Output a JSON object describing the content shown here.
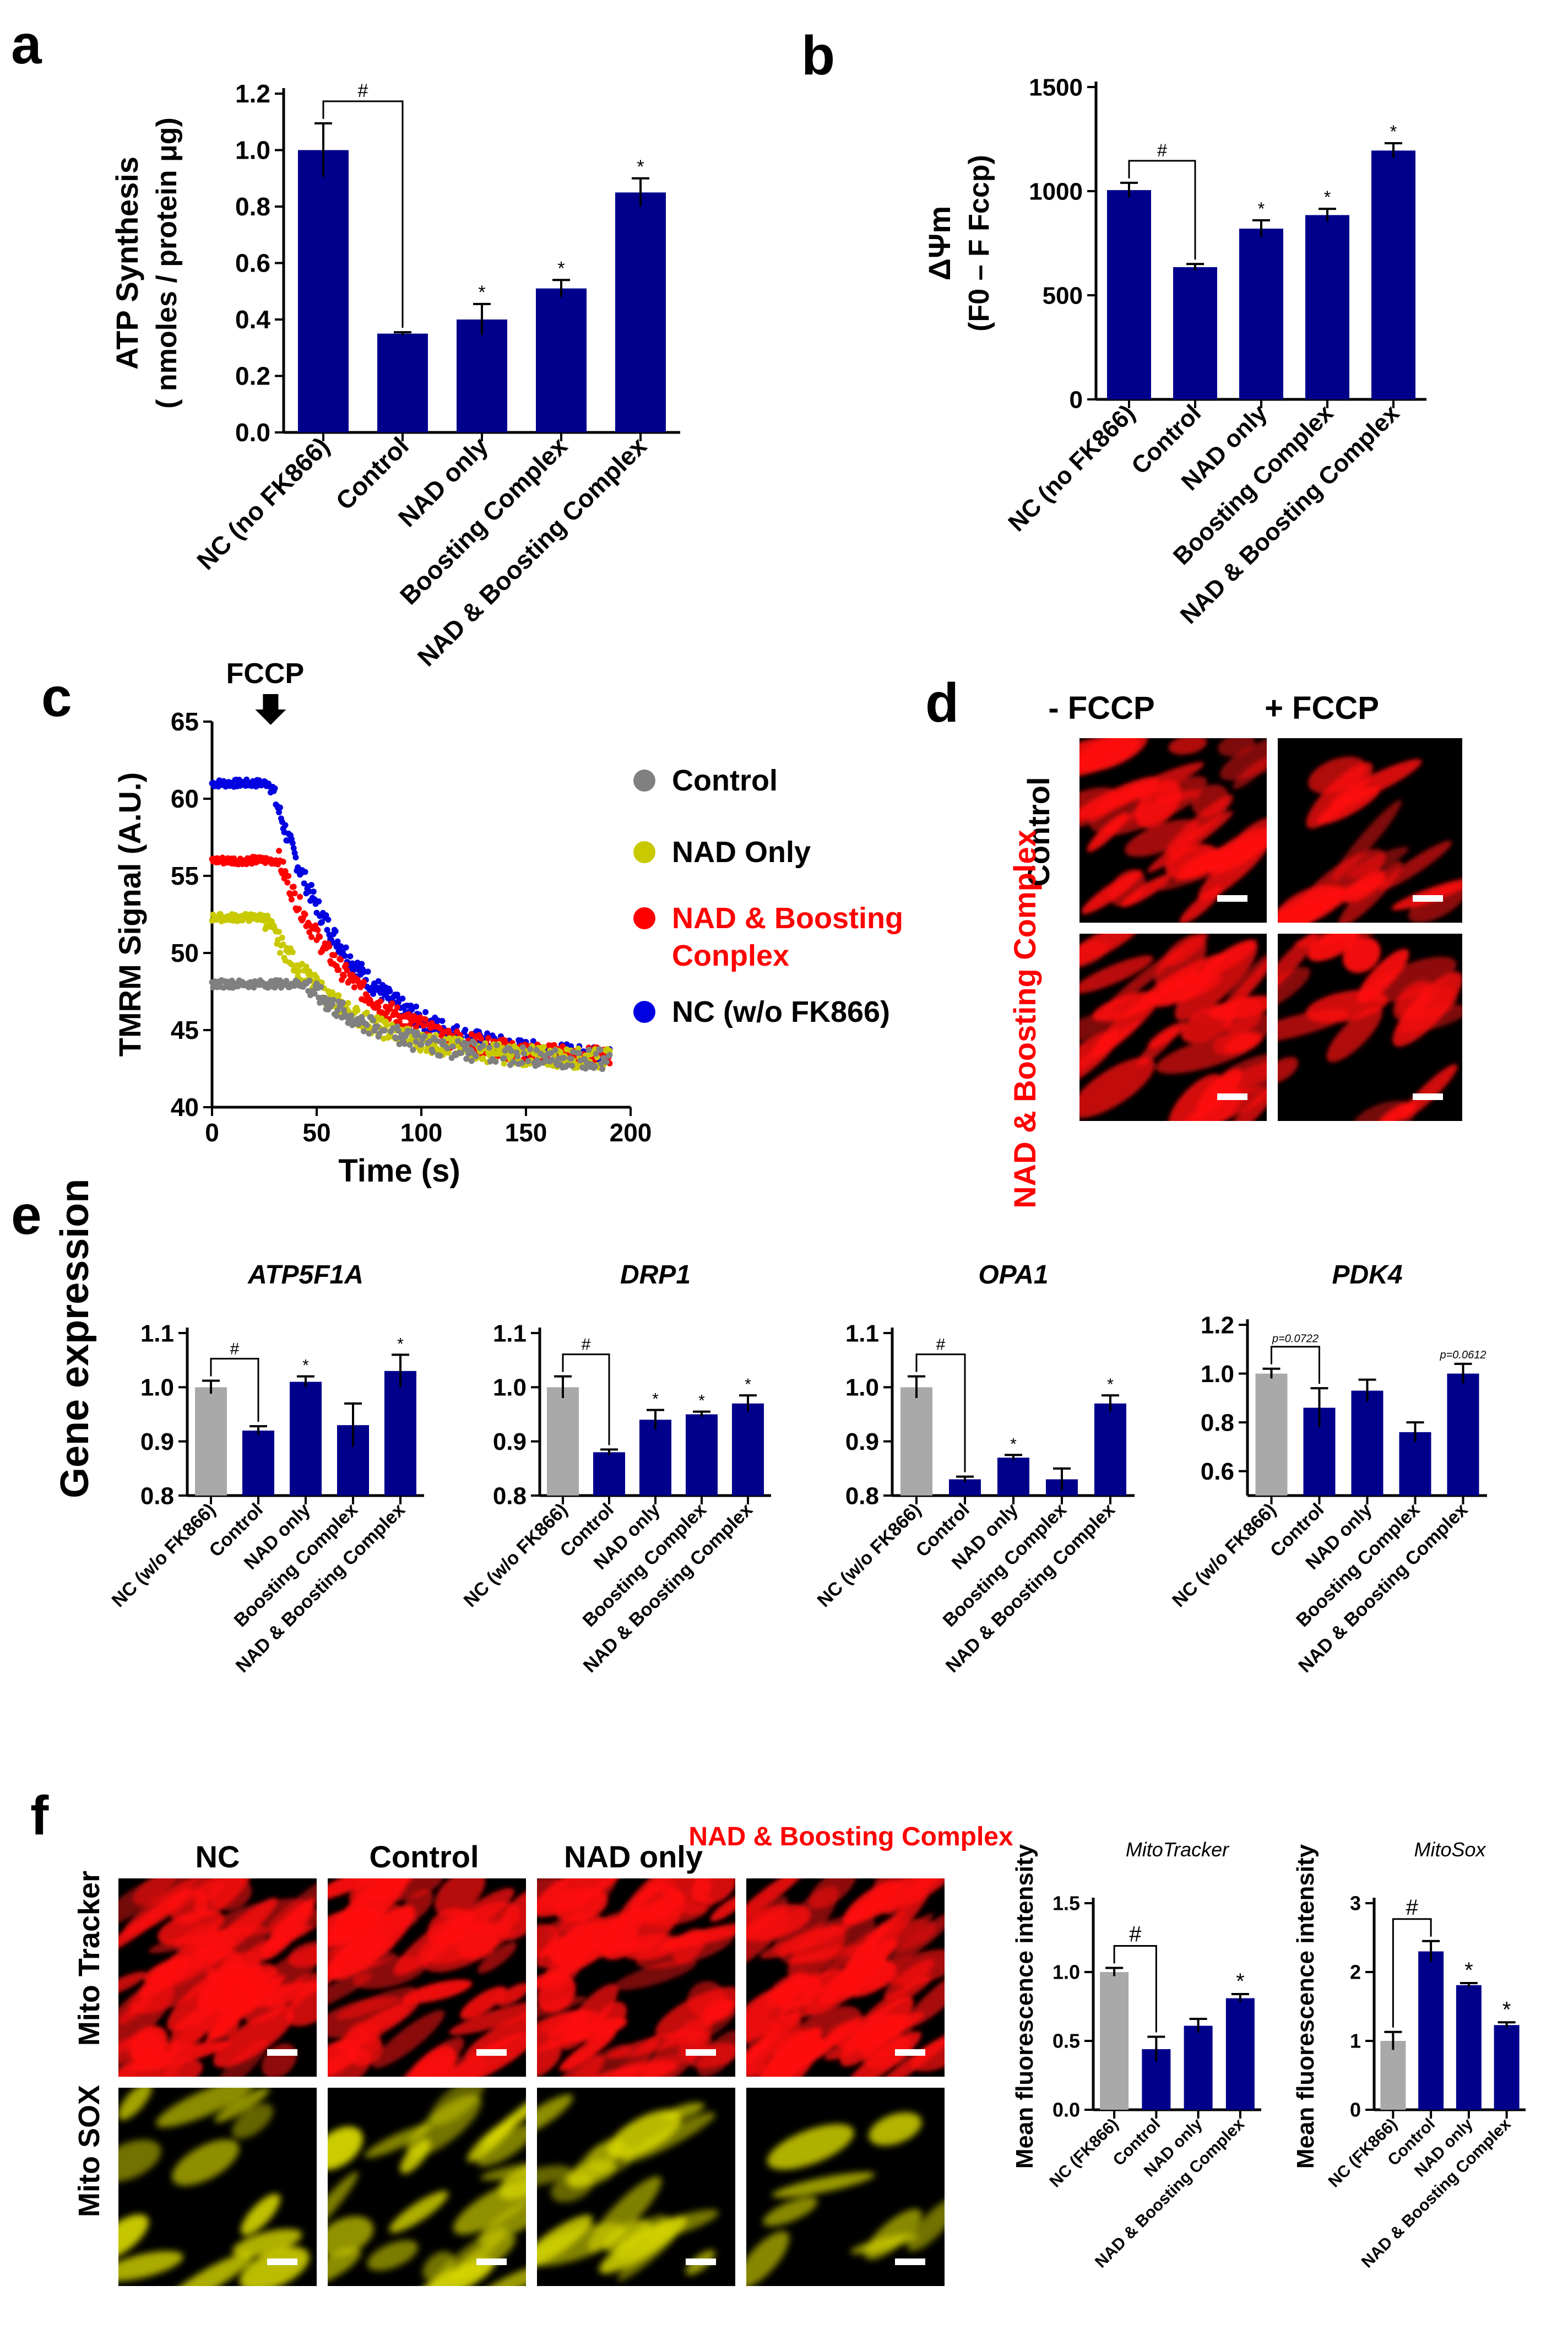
{
  "colors": {
    "navy": "#00008b",
    "gray": "#a9a9a9",
    "red": "#ff0000",
    "olive": "#c9c900",
    "blue": "#0000e0",
    "dotgray": "#808080",
    "yellow": "#e6e600"
  },
  "panels": {
    "a": "a",
    "b": "b",
    "c": "c",
    "d": "d",
    "e": "e",
    "f": "f"
  },
  "chart_data": [
    {
      "id": "a",
      "type": "bar",
      "ylabel_line1": "ATP Synthesis",
      "ylabel_line2": "( nmoles / protein μg)",
      "categories": [
        "NC (no FK866)",
        "Control",
        "NAD only",
        "Boosting Complex",
        "NAD & Boosting Complex"
      ],
      "values": [
        1.0,
        0.35,
        0.4,
        0.51,
        0.85
      ],
      "errors": [
        0.095,
        0.005,
        0.055,
        0.03,
        0.05
      ],
      "colors": [
        "navy",
        "navy",
        "navy",
        "navy",
        "navy"
      ],
      "ylim": [
        0,
        1.2
      ],
      "yticks": [
        "0.0",
        "0.2",
        "0.4",
        "0.6",
        "0.8",
        "1.0",
        "1.2"
      ],
      "sig": [
        "",
        "",
        "*",
        "*",
        "*"
      ],
      "bracket": {
        "from": 0,
        "to": 1,
        "label": "#"
      }
    },
    {
      "id": "b",
      "type": "bar",
      "ylabel_line1": "ΔΨm",
      "ylabel_line2": "(F0 – F Fccp)",
      "categories": [
        "NC (no FK866)",
        "Control",
        "NAD only",
        "Boosting Complex",
        "NAD & Boosting Complex"
      ],
      "values": [
        1005,
        635,
        820,
        885,
        1195
      ],
      "errors": [
        35,
        15,
        40,
        30,
        35
      ],
      "colors": [
        "navy",
        "navy",
        "navy",
        "navy",
        "navy"
      ],
      "ylim": [
        0,
        1500
      ],
      "yticks": [
        "0",
        "500",
        "1000",
        "1500"
      ],
      "sig": [
        "",
        "",
        "*",
        "*",
        "*"
      ],
      "bracket": {
        "from": 0,
        "to": 1,
        "label": "#"
      }
    },
    {
      "id": "c",
      "type": "scatter",
      "annotation": "FCCP",
      "xlabel": "Time (s)",
      "ylabel": "TMRM Signal (A.U.)",
      "xlim": [
        0,
        200
      ],
      "ylim": [
        40,
        65
      ],
      "xticks": [
        "0",
        "50",
        "100",
        "150",
        "200"
      ],
      "yticks": [
        "40",
        "45",
        "50",
        "55",
        "60",
        "65"
      ],
      "fccp_time": 28,
      "legend": [
        "Control",
        "NAD  Only",
        "NAD  & Boosting Conplex",
        "NC (w/o FK866)"
      ],
      "series": [
        {
          "name": "Control",
          "color": "dotgray",
          "start": 48.0,
          "drop_t": 45,
          "end": 43
        },
        {
          "name": "NAD  Only",
          "color": "olive",
          "start": 52.3,
          "drop_t": 25,
          "end": 43
        },
        {
          "name": "NAD  & Boosting Conplex",
          "color": "red",
          "start": 56.0,
          "drop_t": 32,
          "end": 43
        },
        {
          "name": "NC (w/o FK866)",
          "color": "blue",
          "start": 61.0,
          "drop_t": 28,
          "end": 43
        }
      ]
    },
    {
      "id": "e1",
      "type": "bar",
      "title": "ATP5F1A",
      "categories": [
        "NC (w/o FK866)",
        "Control",
        "NAD only",
        "Boosting Complex",
        "NAD & Boosting Complex"
      ],
      "values": [
        1.0,
        0.92,
        1.01,
        0.93,
        1.03
      ],
      "errors": [
        0.012,
        0.008,
        0.01,
        0.04,
        0.03
      ],
      "colors": [
        "gray",
        "navy",
        "navy",
        "navy",
        "navy"
      ],
      "ylim": [
        0.8,
        1.1
      ],
      "yticks": [
        "0.8",
        "0.9",
        "1.0",
        "1.1"
      ],
      "sig": [
        "",
        "",
        "*",
        "",
        "*"
      ],
      "bracket": {
        "from": 0,
        "to": 1,
        "label": "#"
      }
    },
    {
      "id": "e2",
      "type": "bar",
      "title": "DRP1",
      "categories": [
        "NC (w/o FK866)",
        "Control",
        "NAD only",
        "Boosting Complex",
        "NAD & Boosting Complex"
      ],
      "values": [
        1.0,
        0.88,
        0.94,
        0.95,
        0.97
      ],
      "errors": [
        0.02,
        0.005,
        0.018,
        0.005,
        0.015
      ],
      "colors": [
        "gray",
        "navy",
        "navy",
        "navy",
        "navy"
      ],
      "ylim": [
        0.8,
        1.1
      ],
      "yticks": [
        "0.8",
        "0.9",
        "1.0",
        "1.1"
      ],
      "sig": [
        "",
        "",
        "*",
        "*",
        "*"
      ],
      "bracket": {
        "from": 0,
        "to": 1,
        "label": "#"
      }
    },
    {
      "id": "e3",
      "type": "bar",
      "title": "OPA1",
      "categories": [
        "NC (w/o FK866)",
        "Control",
        "NAD only",
        "Boosting Complex",
        "NAD & Boosting Complex"
      ],
      "values": [
        1.0,
        0.83,
        0.87,
        0.83,
        0.97
      ],
      "errors": [
        0.02,
        0.005,
        0.005,
        0.02,
        0.015
      ],
      "colors": [
        "gray",
        "navy",
        "navy",
        "navy",
        "navy"
      ],
      "ylim": [
        0.8,
        1.1
      ],
      "yticks": [
        "0.8",
        "0.9",
        "1.0",
        "1.1"
      ],
      "sig": [
        "",
        "",
        "*",
        "",
        "*"
      ],
      "bracket": {
        "from": 0,
        "to": 1,
        "label": "#"
      }
    },
    {
      "id": "e4",
      "type": "bar",
      "title": "PDK4",
      "categories": [
        "NC (w/o FK866)",
        "Control",
        "NAD only",
        "Boosting Complex",
        "NAD & Boosting Complex"
      ],
      "values": [
        1.0,
        0.86,
        0.93,
        0.76,
        1.0
      ],
      "errors": [
        0.02,
        0.08,
        0.045,
        0.04,
        0.04
      ],
      "colors": [
        "gray",
        "navy",
        "navy",
        "navy",
        "navy"
      ],
      "ylim": [
        0.5,
        1.2
      ],
      "yticks": [
        "0.6",
        "0.8",
        "1.0",
        "1.2"
      ],
      "sig": [
        "",
        "",
        "",
        "",
        "p=0.0612"
      ],
      "bracket": {
        "from": 0,
        "to": 1,
        "label": "p=0.0722"
      }
    },
    {
      "id": "f1",
      "type": "bar",
      "title": "MitoTracker",
      "ylabel": "Mean fluorescence intensity",
      "categories": [
        "NC (FK866)",
        "Control",
        "NAD only",
        "NAD & Boosting Complex"
      ],
      "values": [
        1.0,
        0.44,
        0.61,
        0.81
      ],
      "errors": [
        0.03,
        0.09,
        0.05,
        0.03
      ],
      "colors": [
        "gray",
        "navy",
        "navy",
        "navy"
      ],
      "ylim": [
        0,
        1.5
      ],
      "yticks": [
        "0.0",
        "0.5",
        "1.0",
        "1.5"
      ],
      "sig": [
        "",
        "",
        "",
        "*"
      ],
      "bracket": {
        "from": 0,
        "to": 1,
        "label": "#"
      }
    },
    {
      "id": "f2",
      "type": "bar",
      "title": "MitoSox",
      "ylabel": "Mean fluorescence intensity",
      "categories": [
        "NC (FK866)",
        "Control",
        "NAD only",
        "NAD & Boosting Complex"
      ],
      "values": [
        1.0,
        2.3,
        1.81,
        1.23
      ],
      "errors": [
        0.13,
        0.15,
        0.03,
        0.04
      ],
      "colors": [
        "gray",
        "navy",
        "navy",
        "navy"
      ],
      "ylim": [
        0,
        3
      ],
      "yticks": [
        "0",
        "1",
        "2",
        "3"
      ],
      "sig": [
        "",
        "",
        "*",
        "*"
      ],
      "bracket": {
        "from": 0,
        "to": 1,
        "label": "#"
      }
    }
  ],
  "gene_expression_ylabel": "Gene expression",
  "micro_d": {
    "cols": [
      "-  FCCP",
      "+ FCCP"
    ],
    "rows": [
      "Control",
      "NAD &  Boosting Complex"
    ]
  },
  "micro_f": {
    "cols": [
      "NC",
      "Control",
      "NAD only",
      "NAD & Boosting Complex"
    ],
    "rows": [
      "Mito Tracker",
      "Mito SOX"
    ]
  }
}
